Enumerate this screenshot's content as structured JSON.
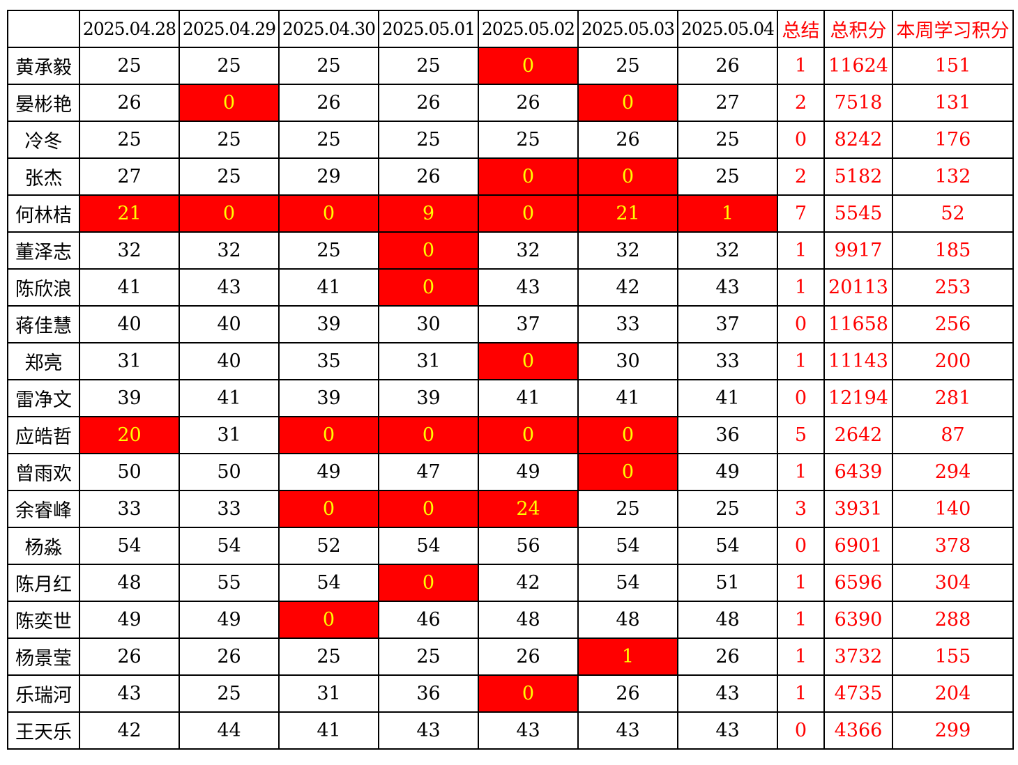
{
  "table": {
    "corner": "",
    "columns": {
      "dates": [
        "2025.04.28",
        "2025.04.29",
        "2025.04.30",
        "2025.05.01",
        "2025.05.02",
        "2025.05.03",
        "2025.05.04"
      ],
      "summary": "总结",
      "total": "总积分",
      "week": "本周学习积分"
    },
    "colors": {
      "highlight_bg": "#FF0000",
      "highlight_text": "#FFFF00",
      "accent_text": "#FF0000",
      "grid": "#000000",
      "body_text": "#000000"
    },
    "rows": [
      {
        "name": "黄承毅",
        "days": [
          {
            "v": "25",
            "hl": false
          },
          {
            "v": "25",
            "hl": false
          },
          {
            "v": "25",
            "hl": false
          },
          {
            "v": "25",
            "hl": false
          },
          {
            "v": "0",
            "hl": true
          },
          {
            "v": "25",
            "hl": false
          },
          {
            "v": "26",
            "hl": false
          }
        ],
        "summary": "1",
        "total": "11624",
        "week": "151"
      },
      {
        "name": "晏彬艳",
        "days": [
          {
            "v": "26",
            "hl": false
          },
          {
            "v": "0",
            "hl": true
          },
          {
            "v": "26",
            "hl": false
          },
          {
            "v": "26",
            "hl": false
          },
          {
            "v": "26",
            "hl": false
          },
          {
            "v": "0",
            "hl": true
          },
          {
            "v": "27",
            "hl": false
          }
        ],
        "summary": "2",
        "total": "7518",
        "week": "131"
      },
      {
        "name": "冷冬",
        "days": [
          {
            "v": "25",
            "hl": false
          },
          {
            "v": "25",
            "hl": false
          },
          {
            "v": "25",
            "hl": false
          },
          {
            "v": "25",
            "hl": false
          },
          {
            "v": "25",
            "hl": false
          },
          {
            "v": "26",
            "hl": false
          },
          {
            "v": "25",
            "hl": false
          }
        ],
        "summary": "0",
        "total": "8242",
        "week": "176"
      },
      {
        "name": "张杰",
        "days": [
          {
            "v": "27",
            "hl": false
          },
          {
            "v": "25",
            "hl": false
          },
          {
            "v": "29",
            "hl": false
          },
          {
            "v": "26",
            "hl": false
          },
          {
            "v": "0",
            "hl": true
          },
          {
            "v": "0",
            "hl": true
          },
          {
            "v": "25",
            "hl": false
          }
        ],
        "summary": "2",
        "total": "5182",
        "week": "132"
      },
      {
        "name": "何林桔",
        "days": [
          {
            "v": "21",
            "hl": true
          },
          {
            "v": "0",
            "hl": true
          },
          {
            "v": "0",
            "hl": true
          },
          {
            "v": "9",
            "hl": true
          },
          {
            "v": "0",
            "hl": true
          },
          {
            "v": "21",
            "hl": true
          },
          {
            "v": "1",
            "hl": true
          }
        ],
        "summary": "7",
        "total": "5545",
        "week": "52"
      },
      {
        "name": "董泽志",
        "days": [
          {
            "v": "32",
            "hl": false
          },
          {
            "v": "32",
            "hl": false
          },
          {
            "v": "25",
            "hl": false
          },
          {
            "v": "0",
            "hl": true
          },
          {
            "v": "32",
            "hl": false
          },
          {
            "v": "32",
            "hl": false
          },
          {
            "v": "32",
            "hl": false
          }
        ],
        "summary": "1",
        "total": "9917",
        "week": "185"
      },
      {
        "name": "陈欣浪",
        "days": [
          {
            "v": "41",
            "hl": false
          },
          {
            "v": "43",
            "hl": false
          },
          {
            "v": "41",
            "hl": false
          },
          {
            "v": "0",
            "hl": true
          },
          {
            "v": "43",
            "hl": false
          },
          {
            "v": "42",
            "hl": false
          },
          {
            "v": "43",
            "hl": false
          }
        ],
        "summary": "1",
        "total": "20113",
        "week": "253"
      },
      {
        "name": "蒋佳慧",
        "days": [
          {
            "v": "40",
            "hl": false
          },
          {
            "v": "40",
            "hl": false
          },
          {
            "v": "39",
            "hl": false
          },
          {
            "v": "30",
            "hl": false
          },
          {
            "v": "37",
            "hl": false
          },
          {
            "v": "33",
            "hl": false
          },
          {
            "v": "37",
            "hl": false
          }
        ],
        "summary": "0",
        "total": "11658",
        "week": "256"
      },
      {
        "name": "郑亮",
        "days": [
          {
            "v": "31",
            "hl": false
          },
          {
            "v": "40",
            "hl": false
          },
          {
            "v": "35",
            "hl": false
          },
          {
            "v": "31",
            "hl": false
          },
          {
            "v": "0",
            "hl": true
          },
          {
            "v": "30",
            "hl": false
          },
          {
            "v": "33",
            "hl": false
          }
        ],
        "summary": "1",
        "total": "11143",
        "week": "200"
      },
      {
        "name": "雷净文",
        "days": [
          {
            "v": "39",
            "hl": false
          },
          {
            "v": "41",
            "hl": false
          },
          {
            "v": "39",
            "hl": false
          },
          {
            "v": "39",
            "hl": false
          },
          {
            "v": "41",
            "hl": false
          },
          {
            "v": "41",
            "hl": false
          },
          {
            "v": "41",
            "hl": false
          }
        ],
        "summary": "0",
        "total": "12194",
        "week": "281"
      },
      {
        "name": "应皓哲",
        "days": [
          {
            "v": "20",
            "hl": true
          },
          {
            "v": "31",
            "hl": false
          },
          {
            "v": "0",
            "hl": true
          },
          {
            "v": "0",
            "hl": true
          },
          {
            "v": "0",
            "hl": true
          },
          {
            "v": "0",
            "hl": true
          },
          {
            "v": "36",
            "hl": false
          }
        ],
        "summary": "5",
        "total": "2642",
        "week": "87"
      },
      {
        "name": "曾雨欢",
        "days": [
          {
            "v": "50",
            "hl": false
          },
          {
            "v": "50",
            "hl": false
          },
          {
            "v": "49",
            "hl": false
          },
          {
            "v": "47",
            "hl": false
          },
          {
            "v": "49",
            "hl": false
          },
          {
            "v": "0",
            "hl": true
          },
          {
            "v": "49",
            "hl": false
          }
        ],
        "summary": "1",
        "total": "6439",
        "week": "294"
      },
      {
        "name": "余睿峰",
        "days": [
          {
            "v": "33",
            "hl": false
          },
          {
            "v": "33",
            "hl": false
          },
          {
            "v": "0",
            "hl": true
          },
          {
            "v": "0",
            "hl": true
          },
          {
            "v": "24",
            "hl": true
          },
          {
            "v": "25",
            "hl": false
          },
          {
            "v": "25",
            "hl": false
          }
        ],
        "summary": "3",
        "total": "3931",
        "week": "140"
      },
      {
        "name": "杨淼",
        "days": [
          {
            "v": "54",
            "hl": false
          },
          {
            "v": "54",
            "hl": false
          },
          {
            "v": "52",
            "hl": false
          },
          {
            "v": "54",
            "hl": false
          },
          {
            "v": "56",
            "hl": false
          },
          {
            "v": "54",
            "hl": false
          },
          {
            "v": "54",
            "hl": false
          }
        ],
        "summary": "0",
        "total": "6901",
        "week": "378"
      },
      {
        "name": "陈月红",
        "days": [
          {
            "v": "48",
            "hl": false
          },
          {
            "v": "55",
            "hl": false
          },
          {
            "v": "54",
            "hl": false
          },
          {
            "v": "0",
            "hl": true
          },
          {
            "v": "42",
            "hl": false
          },
          {
            "v": "54",
            "hl": false
          },
          {
            "v": "51",
            "hl": false
          }
        ],
        "summary": "1",
        "total": "6596",
        "week": "304"
      },
      {
        "name": "陈奕世",
        "days": [
          {
            "v": "49",
            "hl": false
          },
          {
            "v": "49",
            "hl": false
          },
          {
            "v": "0",
            "hl": true
          },
          {
            "v": "46",
            "hl": false
          },
          {
            "v": "48",
            "hl": false
          },
          {
            "v": "48",
            "hl": false
          },
          {
            "v": "48",
            "hl": false
          }
        ],
        "summary": "1",
        "total": "6390",
        "week": "288"
      },
      {
        "name": "杨景莹",
        "days": [
          {
            "v": "26",
            "hl": false
          },
          {
            "v": "26",
            "hl": false
          },
          {
            "v": "25",
            "hl": false
          },
          {
            "v": "25",
            "hl": false
          },
          {
            "v": "26",
            "hl": false
          },
          {
            "v": "1",
            "hl": true
          },
          {
            "v": "26",
            "hl": false
          }
        ],
        "summary": "1",
        "total": "3732",
        "week": "155"
      },
      {
        "name": "乐瑞河",
        "days": [
          {
            "v": "43",
            "hl": false
          },
          {
            "v": "25",
            "hl": false
          },
          {
            "v": "31",
            "hl": false
          },
          {
            "v": "36",
            "hl": false
          },
          {
            "v": "0",
            "hl": true
          },
          {
            "v": "26",
            "hl": false
          },
          {
            "v": "43",
            "hl": false
          }
        ],
        "summary": "1",
        "total": "4735",
        "week": "204"
      },
      {
        "name": "王天乐",
        "days": [
          {
            "v": "42",
            "hl": false
          },
          {
            "v": "44",
            "hl": false
          },
          {
            "v": "41",
            "hl": false
          },
          {
            "v": "43",
            "hl": false
          },
          {
            "v": "43",
            "hl": false
          },
          {
            "v": "43",
            "hl": false
          },
          {
            "v": "43",
            "hl": false
          }
        ],
        "summary": "0",
        "total": "4366",
        "week": "299"
      }
    ]
  }
}
